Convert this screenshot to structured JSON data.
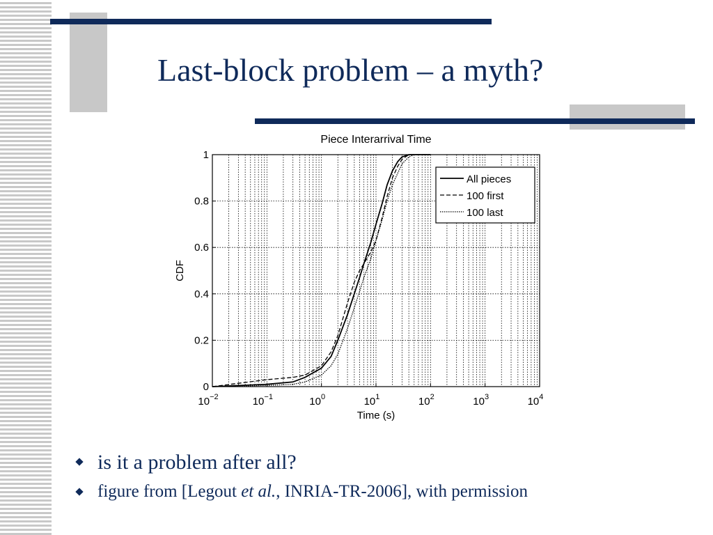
{
  "slide": {
    "title": "Last-block problem – a myth?",
    "accent_color": "#0f2a5a",
    "stripe_color": "#c8c8c8"
  },
  "bullets": [
    {
      "text": "is it a problem after all?"
    },
    {
      "pre": "figure from [Legout ",
      "italic": "et al.",
      "post": ", INRIA-TR-2006], with permission"
    }
  ],
  "chart_data": {
    "type": "line",
    "title": "Piece Interarrival Time",
    "xlabel": "Time (s)",
    "ylabel": "CDF",
    "xscale": "log",
    "xlim": [
      0.01,
      10000
    ],
    "ylim": [
      0,
      1
    ],
    "x_ticks": [
      {
        "base": "10",
        "exp": "−2"
      },
      {
        "base": "10",
        "exp": "−1"
      },
      {
        "base": "10",
        "exp": "0"
      },
      {
        "base": "10",
        "exp": "1"
      },
      {
        "base": "10",
        "exp": "2"
      },
      {
        "base": "10",
        "exp": "3"
      },
      {
        "base": "10",
        "exp": "4"
      }
    ],
    "y_ticks": [
      "0",
      "0.2",
      "0.4",
      "0.6",
      "0.8",
      "1"
    ],
    "grid": true,
    "legend_position": "top-right",
    "series": [
      {
        "name": "All pieces",
        "style": "solid",
        "x": [
          0.01,
          0.1,
          0.3,
          0.5,
          1,
          1.5,
          2,
          3,
          4,
          5,
          6,
          8,
          10,
          13,
          16,
          20,
          25,
          30,
          40,
          50,
          100
        ],
        "y": [
          0.0,
          0.01,
          0.02,
          0.04,
          0.08,
          0.13,
          0.2,
          0.31,
          0.4,
          0.47,
          0.53,
          0.62,
          0.7,
          0.79,
          0.87,
          0.93,
          0.97,
          0.99,
          1.0,
          1.0,
          1.0
        ]
      },
      {
        "name": "100 first",
        "style": "dashed",
        "x": [
          0.01,
          0.1,
          0.3,
          0.5,
          1,
          1.5,
          2,
          3,
          4,
          5,
          6,
          8,
          10,
          13,
          16,
          20,
          25,
          30,
          40,
          50,
          100
        ],
        "y": [
          0.0,
          0.03,
          0.04,
          0.05,
          0.09,
          0.15,
          0.22,
          0.36,
          0.45,
          0.5,
          0.53,
          0.58,
          0.63,
          0.73,
          0.82,
          0.9,
          0.95,
          0.98,
          1.0,
          1.0,
          1.0
        ]
      },
      {
        "name": "100 last",
        "style": "dotted",
        "x": [
          0.01,
          0.1,
          0.3,
          0.5,
          1,
          1.5,
          2,
          3,
          4,
          5,
          6,
          8,
          10,
          13,
          16,
          20,
          25,
          30,
          40,
          50,
          60,
          100
        ],
        "y": [
          0.0,
          0.005,
          0.01,
          0.02,
          0.05,
          0.09,
          0.14,
          0.25,
          0.34,
          0.41,
          0.47,
          0.55,
          0.63,
          0.72,
          0.8,
          0.87,
          0.92,
          0.96,
          0.99,
          1.0,
          1.0,
          1.0
        ]
      }
    ]
  }
}
